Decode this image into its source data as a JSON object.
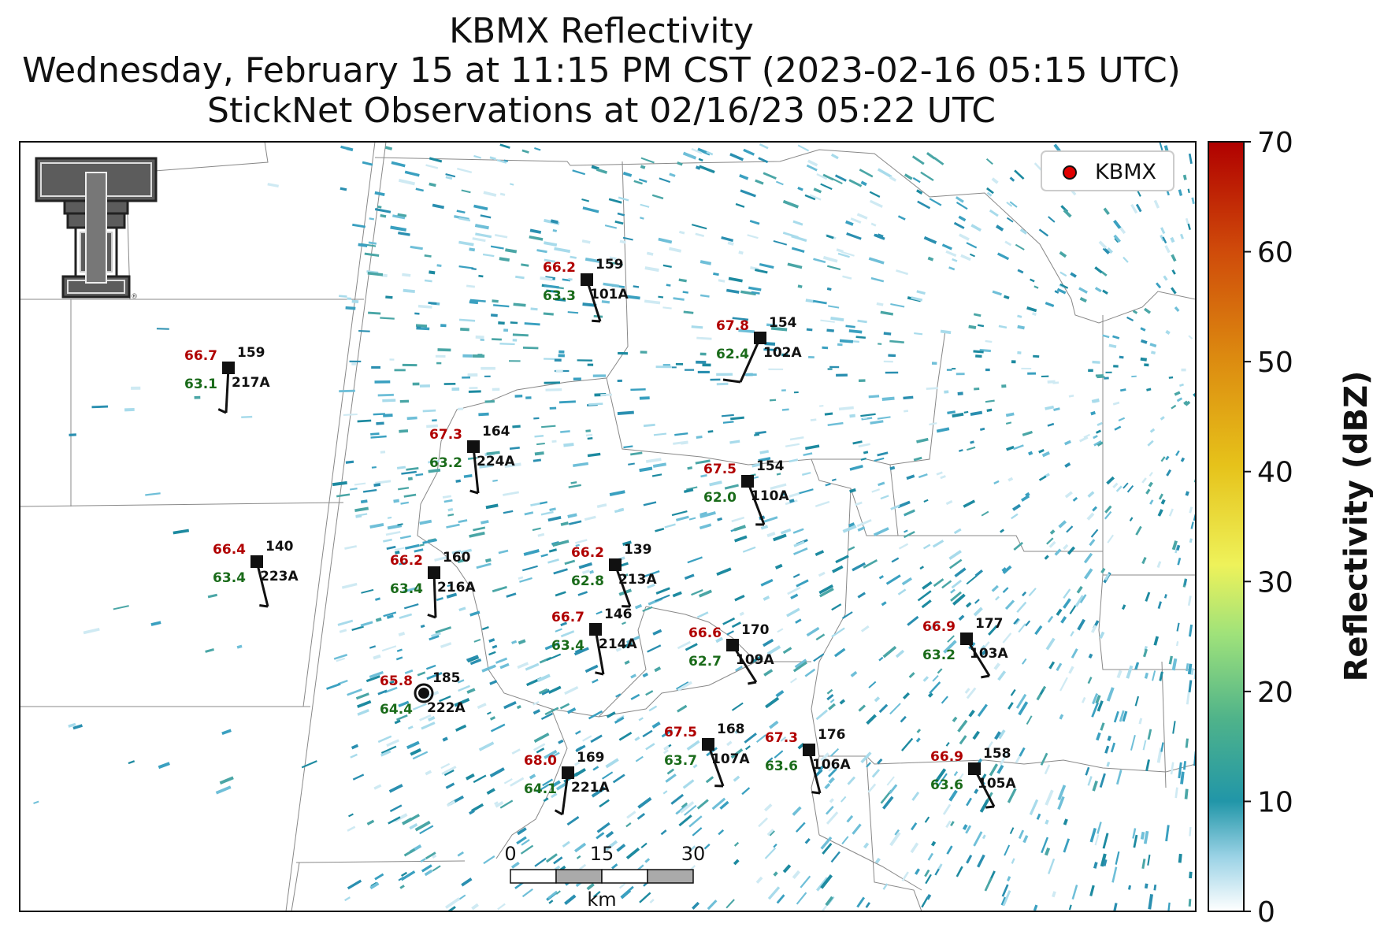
{
  "title": {
    "line1": "KBMX Reflectivity",
    "line2": "Wednesday, February 15 at 11:15 PM CST (2023-02-16 05:15 UTC)",
    "line3": "StickNet Observations at 02/16/23 05:22 UTC"
  },
  "legend": {
    "label": "KBMX",
    "marker_color": "#e00000"
  },
  "colorbar": {
    "label": "Reflectivity (dBZ)",
    "ticks": [
      "0",
      "10",
      "20",
      "30",
      "40",
      "50",
      "60",
      "70"
    ],
    "colors": [
      "#ffffff",
      "#9cd3e6",
      "#2196a8",
      "#4fb38a",
      "#9fe27a",
      "#eef25a",
      "#e6c21a",
      "#dc8a10",
      "#cf4a0a",
      "#b00000"
    ]
  },
  "scalebar": {
    "ticks": [
      "0",
      "15",
      "30"
    ],
    "unit": "km"
  },
  "logo": {
    "name": "texas-tech-double-t-logo"
  },
  "stations": [
    {
      "id": "101A",
      "temp": "66.2",
      "dew": "63.3",
      "pres": "159"
    },
    {
      "id": "102A",
      "temp": "67.8",
      "dew": "62.4",
      "pres": "154"
    },
    {
      "id": "217A",
      "temp": "66.7",
      "dew": "63.1",
      "pres": "159"
    },
    {
      "id": "224A",
      "temp": "67.3",
      "dew": "63.2",
      "pres": "164"
    },
    {
      "id": "110A",
      "temp": "67.5",
      "dew": "62.0",
      "pres": "154"
    },
    {
      "id": "223A",
      "temp": "66.4",
      "dew": "63.4",
      "pres": "140"
    },
    {
      "id": "216A",
      "temp": "66.2",
      "dew": "63.4",
      "pres": "160"
    },
    {
      "id": "213A",
      "temp": "66.2",
      "dew": "62.8",
      "pres": "139"
    },
    {
      "id": "214A",
      "temp": "66.7",
      "dew": "63.4",
      "pres": "146"
    },
    {
      "id": "109A",
      "temp": "66.6",
      "dew": "62.7",
      "pres": "170"
    },
    {
      "id": "103A",
      "temp": "66.9",
      "dew": "63.2",
      "pres": "177"
    },
    {
      "id": "222A",
      "temp": "65.8",
      "dew": "64.4",
      "pres": "185"
    },
    {
      "id": "107A",
      "temp": "67.5",
      "dew": "63.7",
      "pres": "168"
    },
    {
      "id": "106A",
      "temp": "67.3",
      "dew": "63.6",
      "pres": "176"
    },
    {
      "id": "221A",
      "temp": "68.0",
      "dew": "64.1",
      "pres": "169"
    },
    {
      "id": "105A",
      "temp": "66.9",
      "dew": "63.6",
      "pres": "158"
    }
  ]
}
